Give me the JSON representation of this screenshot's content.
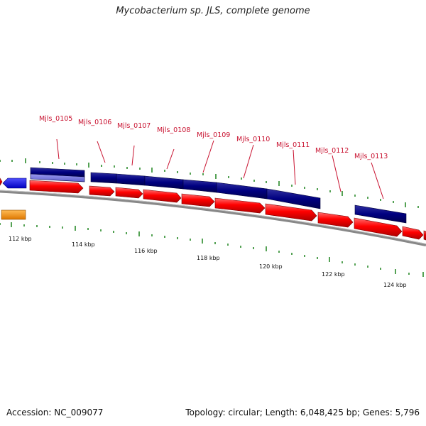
{
  "title": "Mycobacterium sp. JLS, complete genome",
  "footer": {
    "accession": "Accession: NC_009077",
    "summary": "Topology: circular; Length: 6,048,425 bp; Genes: 5,796"
  },
  "axis": {
    "ticks": [
      "112 kbp",
      "114 kbp",
      "116 kbp",
      "118 kbp",
      "120 kbp",
      "122 kbp",
      "124 kbp"
    ]
  },
  "gene_labels": [
    "Mjls_0105",
    "Mjls_0106",
    "Mjls_0107",
    "Mjls_0108",
    "Mjls_0109",
    "Mjls_0110",
    "Mjls_0111",
    "Mjls_0112",
    "Mjls_0113"
  ],
  "colors": {
    "cds_forward": "#ff0000",
    "gene_navy": "#000080",
    "gene_light": "#7777dd",
    "gene_blue": "#0000ff",
    "gene_orange": "#ff9900",
    "tick_green": "#2a8a2a",
    "backbone": "#888888"
  }
}
